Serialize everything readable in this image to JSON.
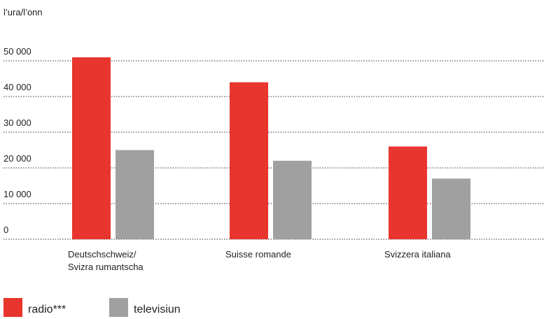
{
  "chart_data": {
    "type": "bar",
    "y_label": "l’ura/l’onn",
    "categories": [
      "Deutschschweiz/\nSvizra rumantscha",
      "Suisse romande",
      "Svizzera italiana"
    ],
    "series": [
      {
        "name": "radio***",
        "color": "#e8352e",
        "values": [
          51000,
          44000,
          26000
        ]
      },
      {
        "name": "televisiun",
        "color": "#a0a0a0",
        "values": [
          25000,
          22000,
          17000
        ]
      }
    ],
    "ylim": [
      0,
      50000
    ],
    "yticks": [
      0,
      {
        "value": 10000,
        "label": "10 000"
      },
      {
        "value": 20000,
        "label": "20 000"
      },
      {
        "value": 30000,
        "label": "30 000"
      },
      {
        "value": 40000,
        "label": "40 000"
      },
      {
        "value": 50000,
        "label": "50 000"
      }
    ],
    "grid": true
  }
}
